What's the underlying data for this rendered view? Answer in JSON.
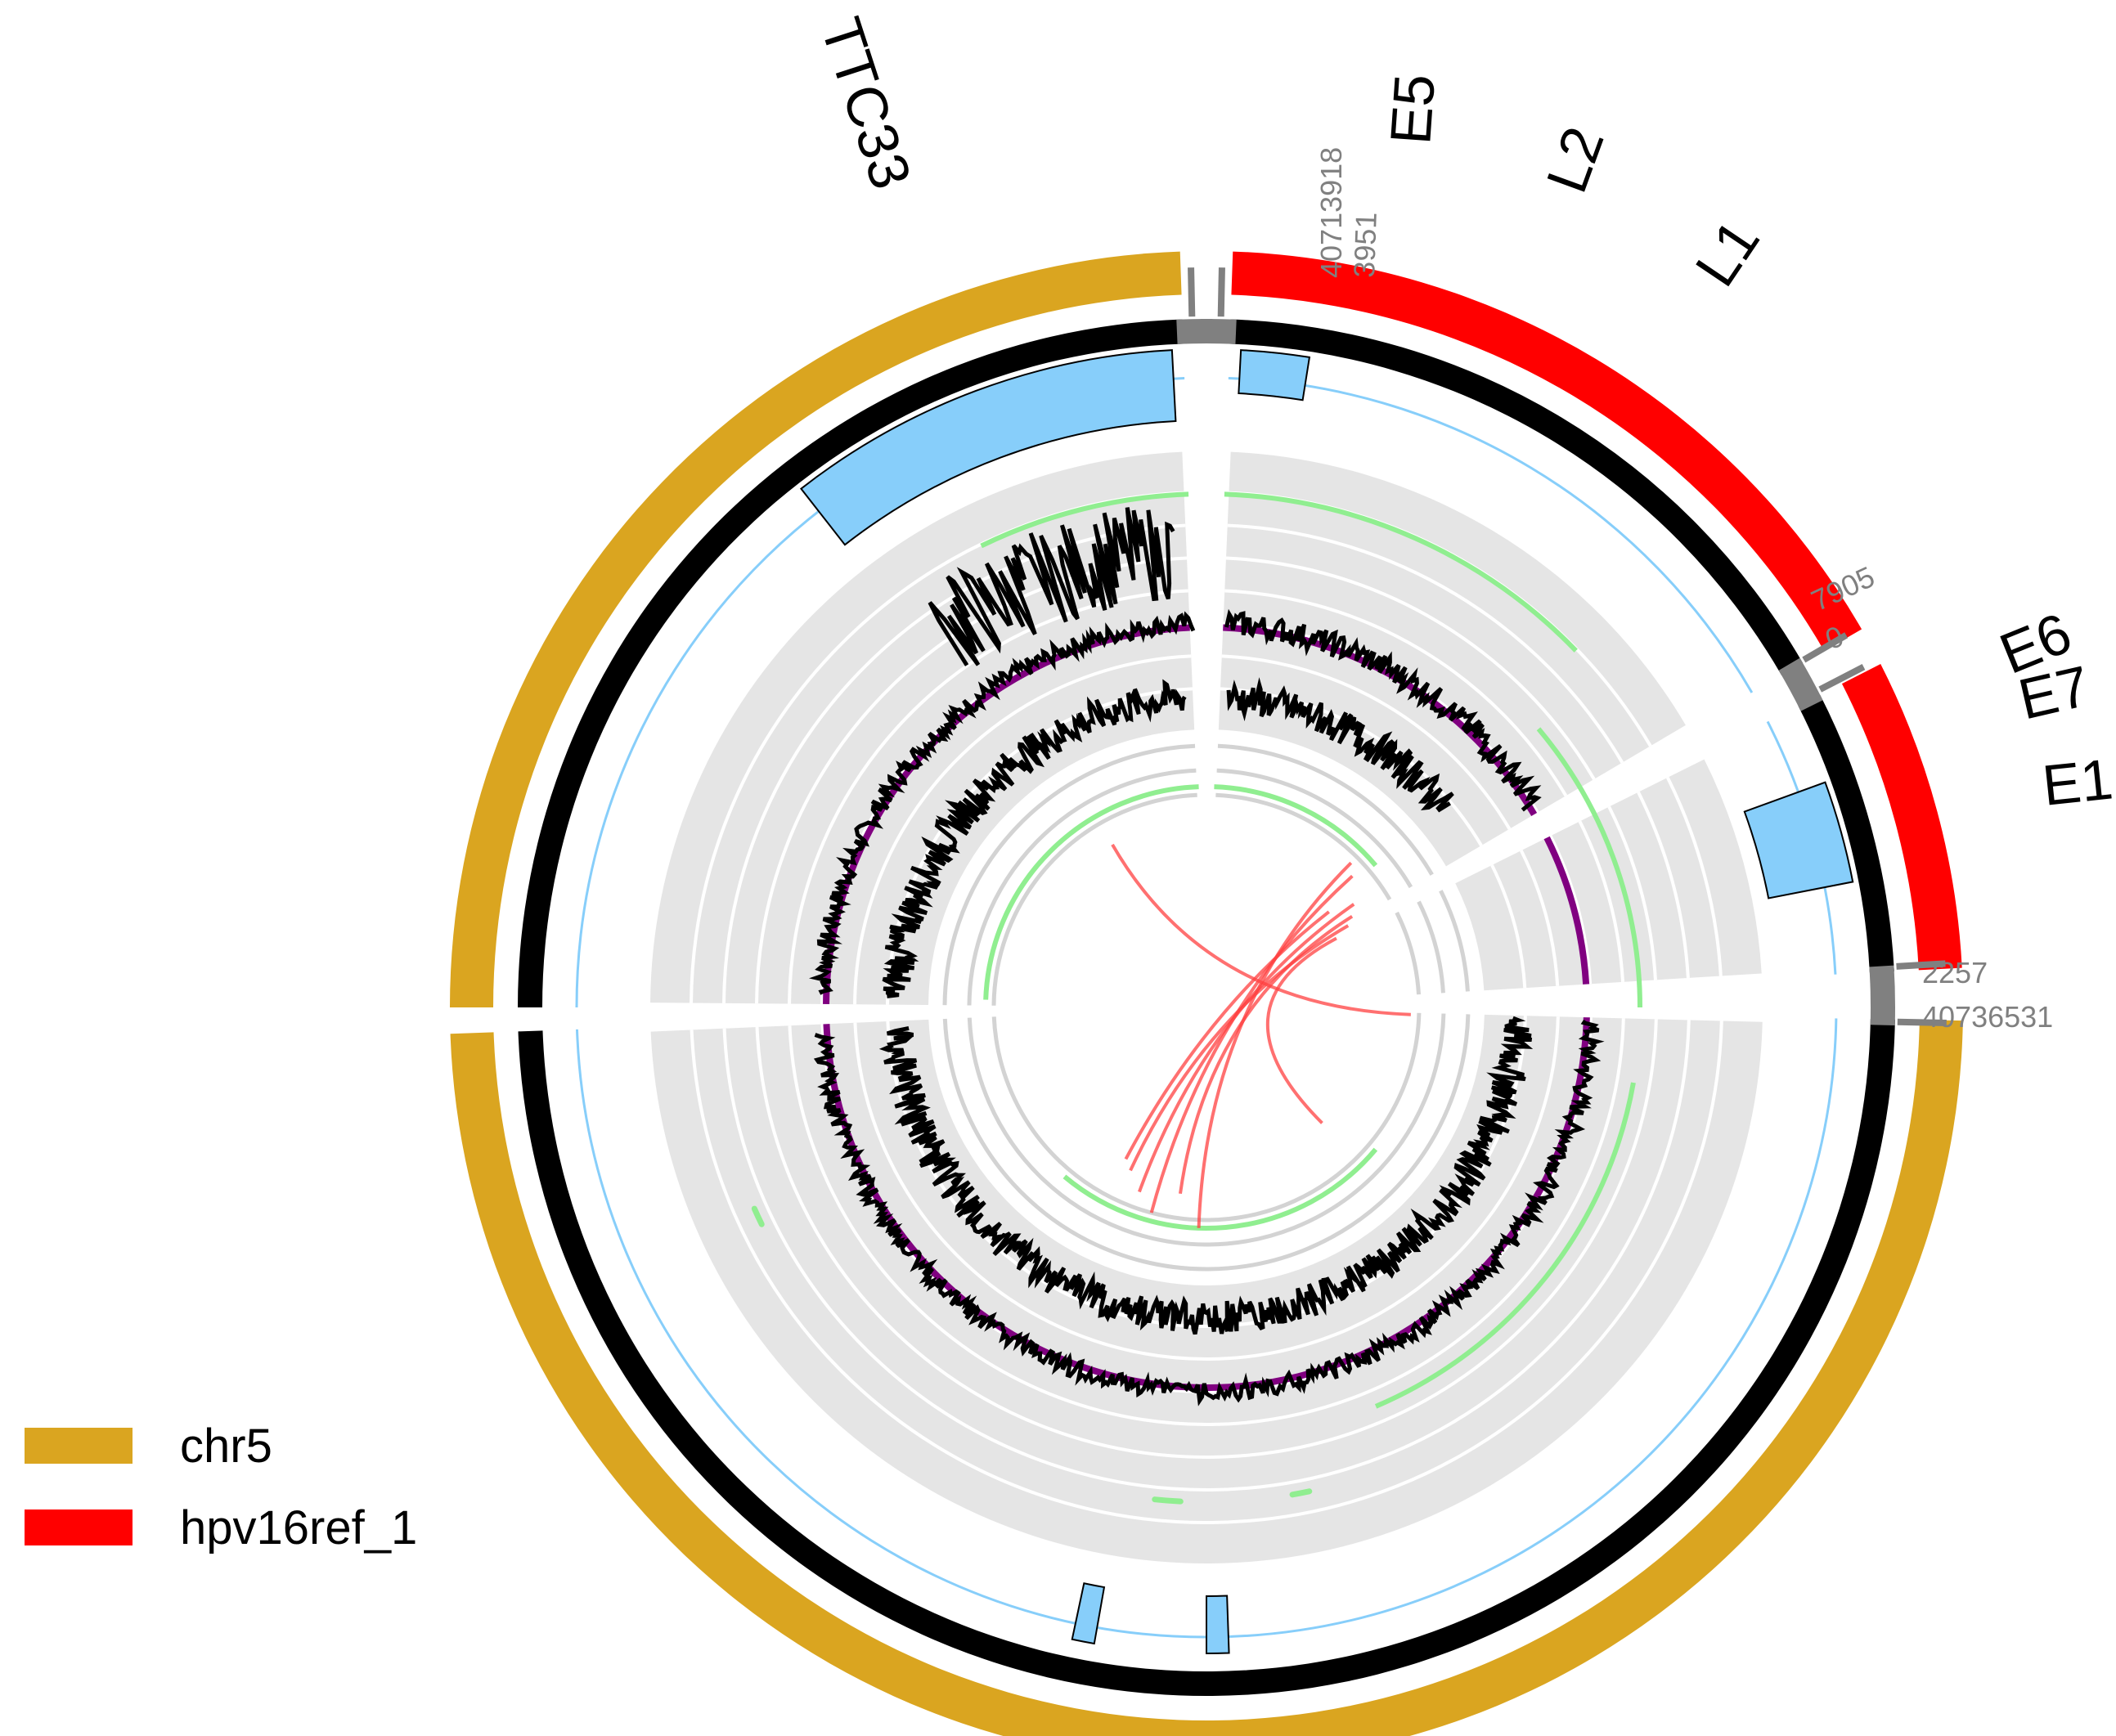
{
  "colors": {
    "chr5": "#DAA520",
    "hpv16": "#FF0000",
    "gene_bar": "#000000",
    "gap": "#808080",
    "exon": "#87CEFA",
    "track_bg": "#E5E5E5",
    "ring_line": "#D3D3D3",
    "signal": "#000000",
    "baseline": "#800080",
    "green": "#90EE90",
    "link": "#FF4040",
    "tick_label": "#808080"
  },
  "legend": [
    {
      "label": "chr5",
      "color": "#DAA520"
    },
    {
      "label": "hpv16ref_1",
      "color": "#FF0000"
    }
  ],
  "tick_labels": {
    "chr5_start": "40713918",
    "hpv_start": "3951",
    "hpv_end": "7905",
    "hpv_restart": "0",
    "hpv_end2": "2257",
    "chr5_end": "40736531"
  },
  "gene_labels": {
    "TTC33": "TTC33",
    "E5": "E5",
    "L2": "L2",
    "L1": "L1",
    "E6": "E6",
    "E7": "E7",
    "E1": "E1"
  },
  "segments": [
    {
      "id": "chr5-a",
      "label": "chr5",
      "start_angle": -90,
      "end_angle": -2
    },
    {
      "id": "hpv-a",
      "label": "hpv16ref_1",
      "start_angle": 2,
      "end_angle": 60
    },
    {
      "id": "hpv-b",
      "label": "hpv16ref_1",
      "start_angle": 63,
      "end_angle": 87
    },
    {
      "id": "chr5-b",
      "label": "chr5",
      "start_angle": 91,
      "end_angle": 268
    }
  ]
}
